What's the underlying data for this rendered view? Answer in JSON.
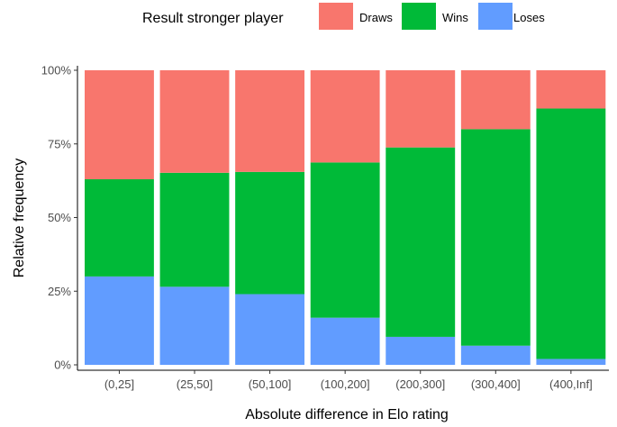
{
  "chart_data": {
    "type": "bar",
    "stacked": true,
    "categories": [
      "(0,25]",
      "(25,50]",
      "(50,100]",
      "(100,200]",
      "(200,300]",
      "(300,400]",
      "(400,Inf]"
    ],
    "series": [
      {
        "name": "Loses",
        "color": "#619CFF",
        "values": [
          0.3,
          0.265,
          0.24,
          0.16,
          0.095,
          0.065,
          0.02
        ]
      },
      {
        "name": "Wins",
        "color": "#00BA38",
        "values": [
          0.33,
          0.387,
          0.415,
          0.527,
          0.643,
          0.735,
          0.85
        ]
      },
      {
        "name": "Draws",
        "color": "#F8766D",
        "values": [
          0.37,
          0.348,
          0.345,
          0.313,
          0.262,
          0.2,
          0.13
        ]
      }
    ],
    "xlabel": "Absolute difference in Elo rating",
    "ylabel": "Relative frequency",
    "ylim": [
      0,
      1
    ],
    "yticks": [
      0,
      0.25,
      0.5,
      0.75,
      1
    ],
    "ytick_labels": [
      "0%",
      "25%",
      "50%",
      "75%",
      "100%"
    ],
    "grid": false,
    "legend": {
      "title": "Result stronger player",
      "placement": "top",
      "entries": [
        {
          "label": "Draws",
          "color": "#F8766D"
        },
        {
          "label": "Wins",
          "color": "#00BA38"
        },
        {
          "label": "Loses",
          "color": "#619CFF"
        }
      ]
    }
  }
}
